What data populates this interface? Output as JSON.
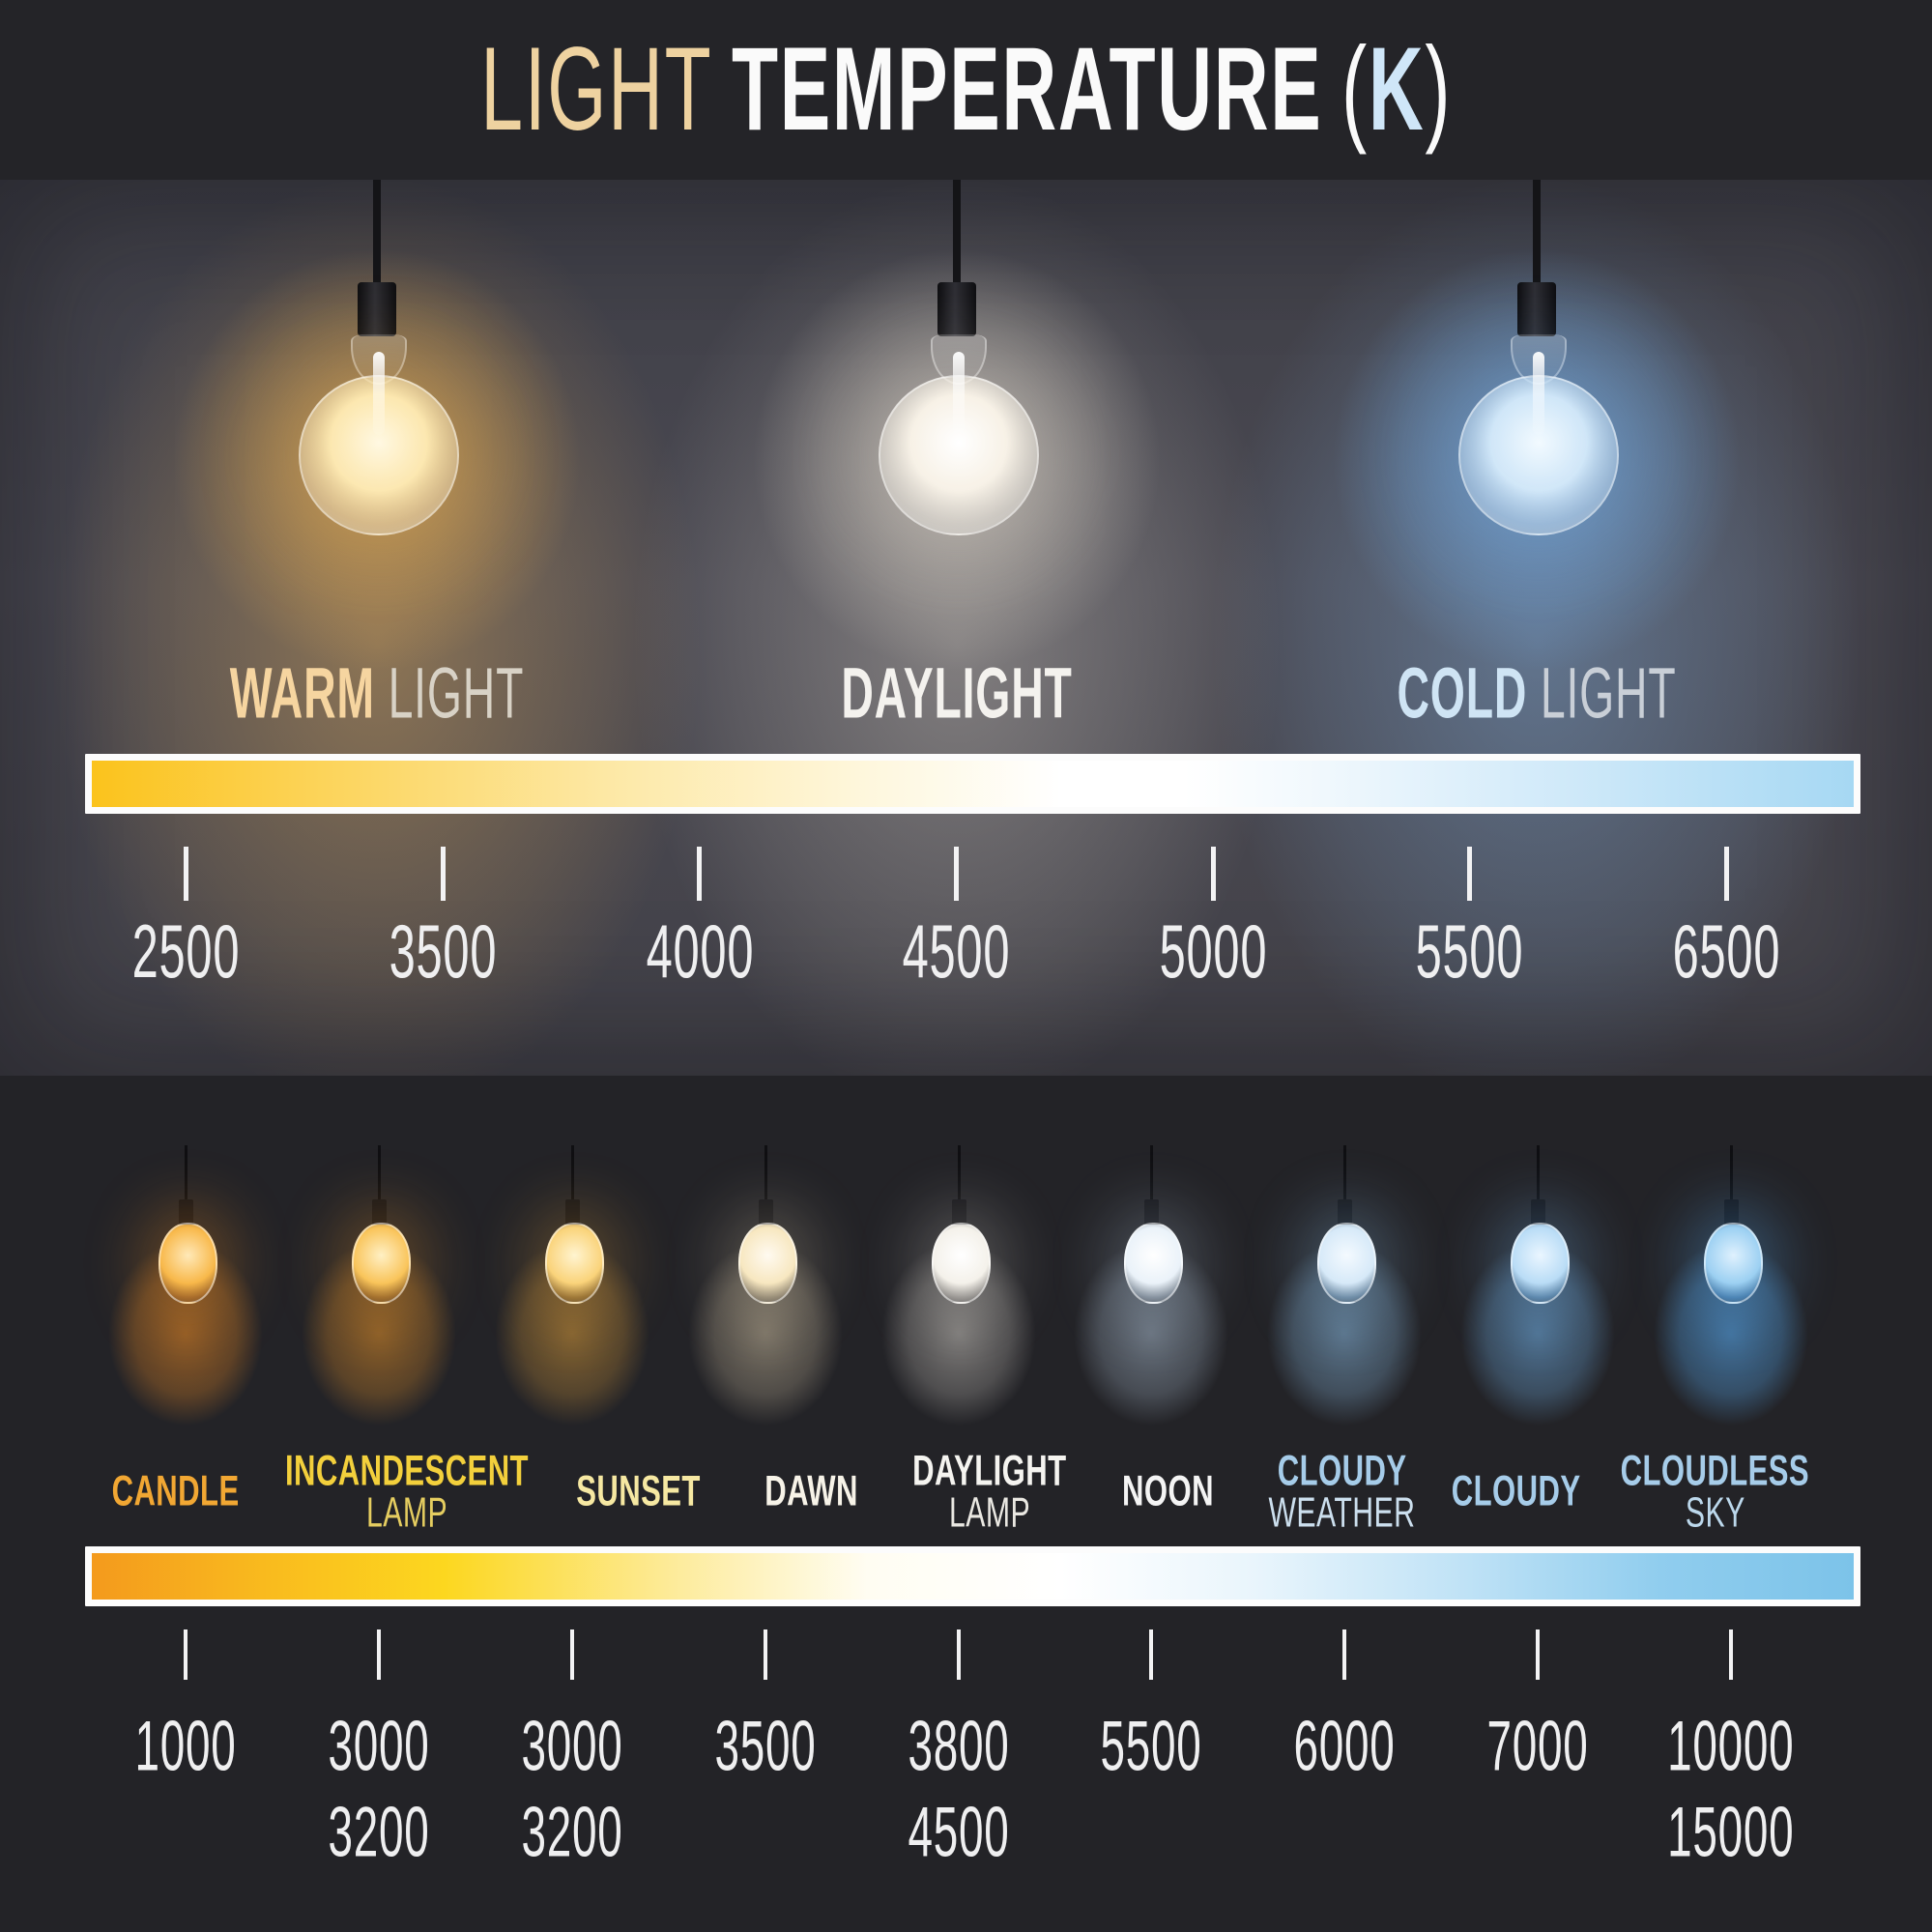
{
  "title": {
    "prefix": "LIGHT",
    "main": "TEMPERATURE",
    "paren_open": "(",
    "unit": "K",
    "paren_close": ")"
  },
  "top_scale": {
    "labels": [
      {
        "strong": "WARM",
        "rest": "LIGHT"
      },
      {
        "strong": "DAYLIGHT",
        "rest": ""
      },
      {
        "strong": "COLD",
        "rest": "LIGHT"
      }
    ],
    "bulbs": [
      "warm-bulb",
      "daylight-bulb",
      "cold-bulb"
    ],
    "ticks": [
      "2500",
      "3500",
      "4000",
      "4500",
      "5000",
      "5500",
      "6500"
    ]
  },
  "bottom_scale": {
    "categories": [
      {
        "line1": "CANDLE",
        "line2": "",
        "kelvin": [
          "1000"
        ]
      },
      {
        "line1": "INCANDESCENT",
        "line2": "LAMP",
        "kelvin": [
          "3000",
          "3200"
        ]
      },
      {
        "line1": "SUNSET",
        "line2": "",
        "kelvin": [
          "3000",
          "3200"
        ]
      },
      {
        "line1": "DAWN",
        "line2": "",
        "kelvin": [
          "3500"
        ]
      },
      {
        "line1": "DAYLIGHT",
        "line2": "LAMP",
        "kelvin": [
          "3800",
          "4500"
        ]
      },
      {
        "line1": "NOON",
        "line2": "",
        "kelvin": [
          "5500"
        ]
      },
      {
        "line1": "CLOUDY",
        "line2": "WEATHER",
        "kelvin": [
          "6000"
        ]
      },
      {
        "line1": "CLOUDY",
        "line2": "",
        "kelvin": [
          "7000"
        ]
      },
      {
        "line1": "CLOUDLESS",
        "line2": "SKY",
        "kelvin": [
          "10000",
          "15000"
        ]
      }
    ]
  },
  "colors": {
    "header_bg": "#242428",
    "mid_bg": "#46464f",
    "bottom_bg": "#232327",
    "title_prefix": "#eed2a0",
    "title_main": "#fafafa",
    "title_unit_k": "#cfe6f8",
    "warm_label": "#f6d5a0",
    "daylight_label": "#f4f2ee",
    "cold_label": "#cfe4f4",
    "bar_top_left": "#fbc31c",
    "bar_top_right": "#a6d8f3",
    "bar_bottom_left": "#f49a1d",
    "bar_bottom_right": "#7cc3e9",
    "tick": "#f3f3f4",
    "number_text": "#efeff0",
    "candle_label": "#f1a733",
    "incandescent_label": "#f3d03c",
    "sunset_label": "#f6e8a2",
    "cloudy_label": "#a6cce9"
  }
}
